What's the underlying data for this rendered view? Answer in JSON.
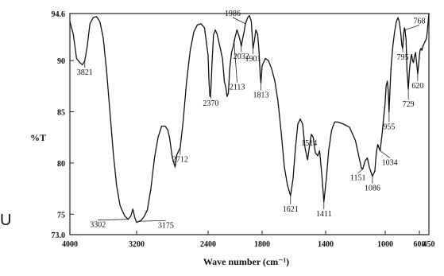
{
  "chart_data": {
    "type": "line",
    "title": "",
    "xlabel": "Wave number (cm⁻¹)",
    "ylabel": "%T",
    "xlim": [
      4000,
      450
    ],
    "ylim": [
      73.0,
      94.6
    ],
    "x_reversed": true,
    "grid": false,
    "x_ticks": [
      4000,
      3200,
      2400,
      1800,
      1400,
      1000,
      600,
      450
    ],
    "y_ticks": [
      94.6,
      90,
      85,
      80,
      75,
      73.0
    ],
    "x_tick_labels": [
      "4000",
      "3200",
      "2400",
      "1800",
      "1400",
      "1000",
      "600",
      "450"
    ],
    "y_tick_labels": [
      "94.6",
      "90",
      "85",
      "80",
      "75",
      "73.0"
    ],
    "series": [
      {
        "points": [
          [
            4000,
            93.8
          ],
          [
            3960,
            92.6
          ],
          [
            3920,
            90.2
          ],
          [
            3880,
            89.8
          ],
          [
            3850,
            89.6
          ],
          [
            3821,
            90.0
          ],
          [
            3790,
            91.5
          ],
          [
            3760,
            93.6
          ],
          [
            3720,
            94.2
          ],
          [
            3680,
            94.3
          ],
          [
            3640,
            93.8
          ],
          [
            3600,
            92.2
          ],
          [
            3560,
            89.0
          ],
          [
            3520,
            85.0
          ],
          [
            3480,
            81.0
          ],
          [
            3440,
            77.8
          ],
          [
            3400,
            75.9
          ],
          [
            3370,
            75.3
          ],
          [
            3340,
            74.8
          ],
          [
            3302,
            74.5
          ],
          [
            3270,
            74.8
          ],
          [
            3245,
            75.5
          ],
          [
            3220,
            74.6
          ],
          [
            3200,
            74.2
          ],
          [
            3175,
            74.3
          ],
          [
            3150,
            74.4
          ],
          [
            3120,
            74.7
          ],
          [
            3080,
            75.4
          ],
          [
            3040,
            77.5
          ],
          [
            3000,
            80.5
          ],
          [
            2960,
            82.5
          ],
          [
            2920,
            83.6
          ],
          [
            2880,
            83.6
          ],
          [
            2850,
            83.2
          ],
          [
            2830,
            82.4
          ],
          [
            2800,
            80.5
          ],
          [
            2770,
            79.6
          ],
          [
            2750,
            80.8
          ],
          [
            2712,
            81.5
          ],
          [
            2680,
            84.0
          ],
          [
            2640,
            88.0
          ],
          [
            2600,
            91.0
          ],
          [
            2560,
            92.8
          ],
          [
            2520,
            93.5
          ],
          [
            2480,
            93.6
          ],
          [
            2440,
            93.2
          ],
          [
            2400,
            90.5
          ],
          [
            2390,
            88.0
          ],
          [
            2380,
            86.5
          ],
          [
            2370,
            87.0
          ],
          [
            2355,
            90.0
          ],
          [
            2340,
            92.5
          ],
          [
            2320,
            93.0
          ],
          [
            2300,
            92.6
          ],
          [
            2260,
            91.0
          ],
          [
            2240,
            90.2
          ],
          [
            2220,
            88.0
          ],
          [
            2200,
            87.2
          ],
          [
            2190,
            86.5
          ],
          [
            2175,
            86.8
          ],
          [
            2160,
            89.2
          ],
          [
            2140,
            90.8
          ],
          [
            2120,
            91.4
          ],
          [
            2100,
            92.3
          ],
          [
            2080,
            93.0
          ],
          [
            2060,
            92.5
          ],
          [
            2040,
            91.8
          ],
          [
            2032,
            91.4
          ],
          [
            2020,
            92.0
          ],
          [
            2000,
            92.8
          ],
          [
            1986,
            93.6
          ],
          [
            1960,
            94.2
          ],
          [
            1940,
            94.4
          ],
          [
            1920,
            93.8
          ],
          [
            1901,
            91.2
          ],
          [
            1885,
            92.0
          ],
          [
            1870,
            93.0
          ],
          [
            1850,
            92.6
          ],
          [
            1835,
            91.0
          ],
          [
            1820,
            88.5
          ],
          [
            1813,
            87.8
          ],
          [
            1800,
            89.5
          ],
          [
            1780,
            90.2
          ],
          [
            1760,
            90.0
          ],
          [
            1740,
            89.2
          ],
          [
            1720,
            88.0
          ],
          [
            1700,
            86.0
          ],
          [
            1680,
            83.0
          ],
          [
            1660,
            79.6
          ],
          [
            1640,
            77.8
          ],
          [
            1621,
            76.8
          ],
          [
            1605,
            78.5
          ],
          [
            1590,
            81.5
          ],
          [
            1575,
            83.8
          ],
          [
            1560,
            84.3
          ],
          [
            1545,
            83.8
          ],
          [
            1530,
            81.5
          ],
          [
            1514,
            80.3
          ],
          [
            1500,
            81.8
          ],
          [
            1490,
            82.8
          ],
          [
            1478,
            82.5
          ],
          [
            1465,
            81.0
          ],
          [
            1450,
            80.7
          ],
          [
            1438,
            81.2
          ],
          [
            1425,
            79.0
          ],
          [
            1411,
            76.2
          ],
          [
            1395,
            78.5
          ],
          [
            1380,
            81.2
          ],
          [
            1360,
            83.2
          ],
          [
            1340,
            84.0
          ],
          [
            1320,
            84.0
          ],
          [
            1280,
            83.8
          ],
          [
            1240,
            83.5
          ],
          [
            1200,
            82.2
          ],
          [
            1175,
            80.5
          ],
          [
            1160,
            79.5
          ],
          [
            1151,
            79.4
          ],
          [
            1135,
            80.2
          ],
          [
            1120,
            80.5
          ],
          [
            1105,
            79.5
          ],
          [
            1086,
            78.7
          ],
          [
            1070,
            79.2
          ],
          [
            1060,
            81.0
          ],
          [
            1050,
            81.8
          ],
          [
            1040,
            81.4
          ],
          [
            1034,
            81.2
          ],
          [
            1020,
            83.0
          ],
          [
            1000,
            86.0
          ],
          [
            990,
            87.5
          ],
          [
            975,
            88.0
          ],
          [
            965,
            87.0
          ],
          [
            955,
            85.0
          ],
          [
            945,
            87.0
          ],
          [
            930,
            89.5
          ],
          [
            910,
            91.5
          ],
          [
            890,
            92.8
          ],
          [
            870,
            93.8
          ],
          [
            850,
            94.2
          ],
          [
            835,
            93.8
          ],
          [
            820,
            92.8
          ],
          [
            806,
            91.5
          ],
          [
            795,
            91.2
          ],
          [
            785,
            92.5
          ],
          [
            775,
            93.2
          ],
          [
            768,
            93.0
          ],
          [
            755,
            92.0
          ],
          [
            745,
            89.0
          ],
          [
            729,
            87.2
          ],
          [
            715,
            89.2
          ],
          [
            700,
            90.3
          ],
          [
            690,
            90.6
          ],
          [
            680,
            90.0
          ],
          [
            670,
            89.8
          ],
          [
            660,
            90.3
          ],
          [
            645,
            90.8
          ],
          [
            635,
            90.0
          ],
          [
            620,
            88.7
          ],
          [
            605,
            90.0
          ],
          [
            590,
            91.0
          ],
          [
            575,
            91.2
          ],
          [
            560,
            91.0
          ],
          [
            545,
            91.4
          ],
          [
            530,
            91.6
          ],
          [
            515,
            91.8
          ],
          [
            500,
            92.0
          ],
          [
            485,
            92.3
          ],
          [
            470,
            93.2
          ],
          [
            450,
            94.6
          ]
        ]
      }
    ],
    "annotations": [
      {
        "text": "3821",
        "x": 3821,
        "y": 90.0
      },
      {
        "text": "3302",
        "x": 3302,
        "y": 74.5
      },
      {
        "text": "3175",
        "x": 3175,
        "y": 74.3
      },
      {
        "text": "2712",
        "x": 2712,
        "y": 81.5
      },
      {
        "text": "2370",
        "x": 2370,
        "y": 87.0
      },
      {
        "text": "2113",
        "x": 2113,
        "y": 92.0
      },
      {
        "text": "1986",
        "x": 1986,
        "y": 93.6
      },
      {
        "text": "2032",
        "x": 2032,
        "y": 91.4
      },
      {
        "text": "1901",
        "x": 1901,
        "y": 91.2
      },
      {
        "text": "1813",
        "x": 1813,
        "y": 87.8
      },
      {
        "text": "1621",
        "x": 1621,
        "y": 76.8
      },
      {
        "text": "1514",
        "x": 1514,
        "y": 80.3
      },
      {
        "text": "1411",
        "x": 1411,
        "y": 76.2
      },
      {
        "text": "1151",
        "x": 1151,
        "y": 79.4
      },
      {
        "text": "1086",
        "x": 1086,
        "y": 78.7
      },
      {
        "text": "1034",
        "x": 1034,
        "y": 81.2
      },
      {
        "text": "955",
        "x": 955,
        "y": 85.0
      },
      {
        "text": "795",
        "x": 795,
        "y": 91.2
      },
      {
        "text": "768",
        "x": 768,
        "y": 93.0
      },
      {
        "text": "729",
        "x": 729,
        "y": 87.2
      },
      {
        "text": "620",
        "x": 620,
        "y": 88.7
      }
    ],
    "side_text": "U"
  }
}
